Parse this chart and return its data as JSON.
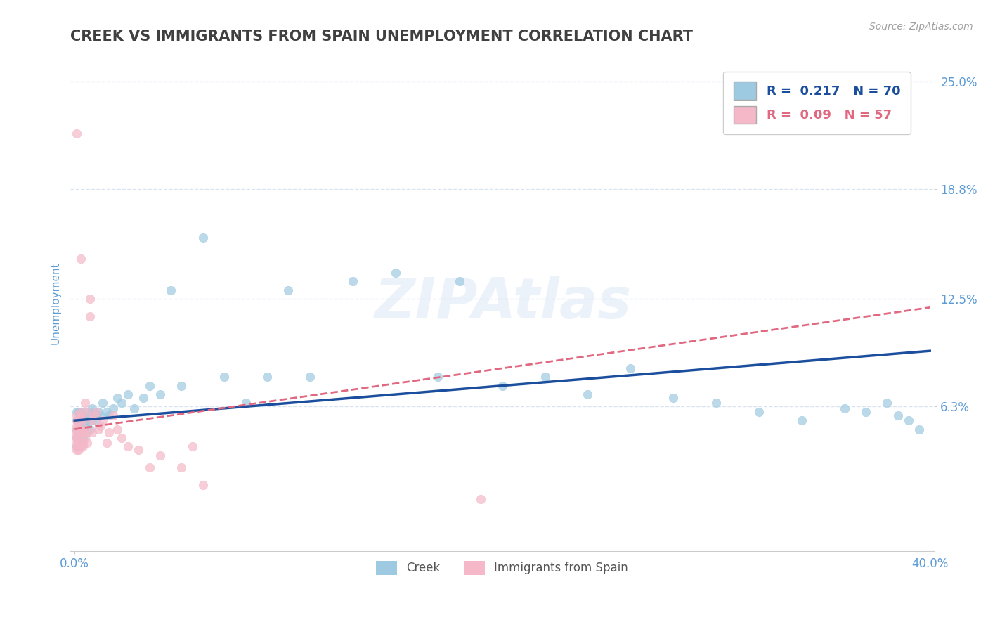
{
  "title": "CREEK VS IMMIGRANTS FROM SPAIN UNEMPLOYMENT CORRELATION CHART",
  "source_text": "Source: ZipAtlas.com",
  "ylabel": "Unemployment",
  "xlim": [
    -0.002,
    0.402
  ],
  "ylim": [
    -0.02,
    0.265
  ],
  "yticks": [
    0.063,
    0.125,
    0.188,
    0.25
  ],
  "ytick_labels": [
    "6.3%",
    "12.5%",
    "18.8%",
    "25.0%"
  ],
  "xticks": [
    0.0,
    0.4
  ],
  "xtick_labels": [
    "0.0%",
    "40.0%"
  ],
  "creek_color": "#9ecae1",
  "spain_color": "#f4b8c8",
  "creek_line_color": "#1b4f9e",
  "spain_line_color": "#e06880",
  "R_creek": 0.217,
  "N_creek": 70,
  "R_spain": 0.09,
  "N_spain": 57,
  "legend_label_creek": "Creek",
  "legend_label_spain": "Immigrants from Spain",
  "watermark": "ZIPAtlas",
  "creek_x": [
    0.001,
    0.001,
    0.001,
    0.001,
    0.001,
    0.002,
    0.002,
    0.002,
    0.002,
    0.002,
    0.003,
    0.003,
    0.003,
    0.003,
    0.004,
    0.004,
    0.004,
    0.004,
    0.005,
    0.005,
    0.005,
    0.006,
    0.006,
    0.006,
    0.007,
    0.007,
    0.008,
    0.008,
    0.009,
    0.01,
    0.01,
    0.011,
    0.012,
    0.013,
    0.015,
    0.016,
    0.018,
    0.02,
    0.022,
    0.025,
    0.028,
    0.032,
    0.035,
    0.04,
    0.045,
    0.05,
    0.06,
    0.07,
    0.08,
    0.09,
    0.1,
    0.11,
    0.13,
    0.15,
    0.17,
    0.18,
    0.2,
    0.22,
    0.24,
    0.26,
    0.28,
    0.3,
    0.32,
    0.34,
    0.36,
    0.37,
    0.38,
    0.385,
    0.39,
    0.395
  ],
  "creek_y": [
    0.055,
    0.05,
    0.045,
    0.04,
    0.06,
    0.05,
    0.048,
    0.055,
    0.06,
    0.045,
    0.055,
    0.06,
    0.05,
    0.048,
    0.055,
    0.045,
    0.058,
    0.05,
    0.052,
    0.055,
    0.048,
    0.05,
    0.06,
    0.055,
    0.058,
    0.05,
    0.062,
    0.055,
    0.06,
    0.058,
    0.055,
    0.06,
    0.058,
    0.065,
    0.06,
    0.058,
    0.062,
    0.068,
    0.065,
    0.07,
    0.062,
    0.068,
    0.075,
    0.07,
    0.13,
    0.075,
    0.16,
    0.08,
    0.065,
    0.08,
    0.13,
    0.08,
    0.135,
    0.14,
    0.08,
    0.135,
    0.075,
    0.08,
    0.07,
    0.085,
    0.068,
    0.065,
    0.06,
    0.055,
    0.062,
    0.06,
    0.065,
    0.058,
    0.055,
    0.05
  ],
  "spain_x": [
    0.001,
    0.001,
    0.001,
    0.001,
    0.001,
    0.001,
    0.001,
    0.001,
    0.001,
    0.001,
    0.001,
    0.002,
    0.002,
    0.002,
    0.002,
    0.002,
    0.002,
    0.002,
    0.003,
    0.003,
    0.003,
    0.003,
    0.003,
    0.003,
    0.003,
    0.004,
    0.004,
    0.004,
    0.004,
    0.005,
    0.005,
    0.005,
    0.006,
    0.006,
    0.006,
    0.007,
    0.007,
    0.008,
    0.008,
    0.009,
    0.01,
    0.011,
    0.012,
    0.013,
    0.015,
    0.016,
    0.018,
    0.02,
    0.022,
    0.025,
    0.03,
    0.035,
    0.04,
    0.05,
    0.055,
    0.06,
    0.19
  ],
  "spain_y": [
    0.055,
    0.045,
    0.05,
    0.04,
    0.058,
    0.042,
    0.048,
    0.052,
    0.038,
    0.046,
    0.22,
    0.05,
    0.048,
    0.042,
    0.045,
    0.055,
    0.038,
    0.04,
    0.048,
    0.06,
    0.05,
    0.042,
    0.058,
    0.04,
    0.148,
    0.048,
    0.055,
    0.04,
    0.042,
    0.05,
    0.045,
    0.065,
    0.042,
    0.06,
    0.048,
    0.125,
    0.115,
    0.055,
    0.048,
    0.058,
    0.06,
    0.05,
    0.052,
    0.055,
    0.042,
    0.048,
    0.058,
    0.05,
    0.045,
    0.04,
    0.038,
    0.028,
    0.035,
    0.028,
    0.04,
    0.018,
    0.01
  ],
  "axis_label_color": "#5b9bd5",
  "grid_color": "#d8e4f0",
  "background_color": "#ffffff",
  "title_color": "#404040",
  "title_fontsize": 15,
  "axis_fontsize": 11,
  "tick_fontsize": 12
}
